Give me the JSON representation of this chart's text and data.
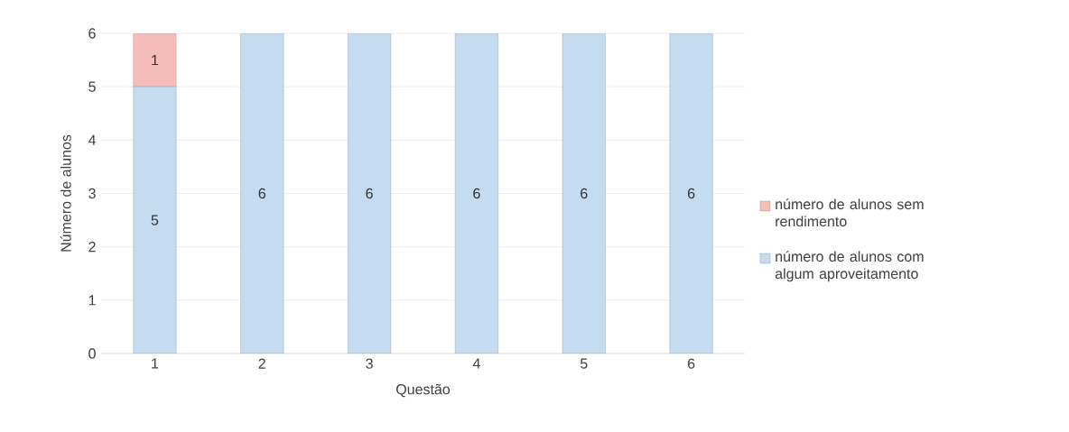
{
  "chart_data": {
    "type": "bar",
    "stacked": true,
    "xlabel": "Questão",
    "ylabel": "Número de alunos",
    "categories": [
      "1",
      "2",
      "3",
      "4",
      "5",
      "6"
    ],
    "series": [
      {
        "name": "número de alunos com algum aproveitamento",
        "color": "#c5dbf0",
        "values": [
          5,
          6,
          6,
          6,
          6,
          6
        ]
      },
      {
        "name": "número de alunos sem rendimento",
        "color": "#f5bcba",
        "values": [
          1,
          null,
          null,
          null,
          null,
          null
        ]
      }
    ],
    "ylim": [
      0,
      6
    ],
    "yticks": [
      0,
      1,
      2,
      3,
      4,
      5,
      6
    ],
    "grid": "y",
    "legend": "right",
    "data_labels": true
  }
}
